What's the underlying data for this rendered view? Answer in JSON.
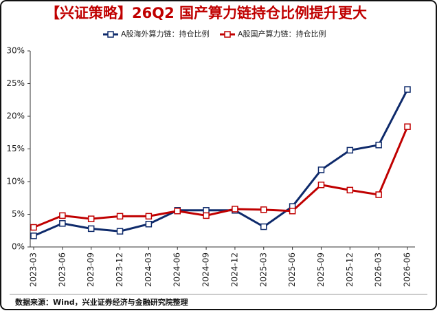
{
  "chart_data": {
    "type": "line",
    "title": "【兴证策略】26Q2 国产算力链持仓比例提升更大",
    "source": "数据来源：Wind，兴业证券经济与金融研究院整理",
    "categories": [
      "2023-03",
      "2023-06",
      "2023-09",
      "2023-12",
      "2024-03",
      "2024-06",
      "2024-09",
      "2024-12",
      "2025-03",
      "2025-06",
      "2025-09",
      "2025-12",
      "2026-03",
      "2026-06"
    ],
    "series": [
      {
        "name": "A股海外算力链：持仓比例",
        "color": "#0e2a6b",
        "values": [
          1.7,
          3.6,
          2.8,
          2.4,
          3.5,
          5.6,
          5.6,
          5.6,
          3.1,
          6.2,
          11.8,
          14.8,
          15.6,
          24.1
        ]
      },
      {
        "name": "A股国产算力链：持仓比例",
        "color": "#c00000",
        "values": [
          3.0,
          4.8,
          4.3,
          4.7,
          4.7,
          5.5,
          4.8,
          5.8,
          5.7,
          5.5,
          9.5,
          8.7,
          8.0,
          18.4
        ]
      }
    ],
    "ylim": [
      0,
      30
    ],
    "yticks": [
      {
        "value": 0,
        "label": "0%"
      },
      {
        "value": 5,
        "label": "5%"
      },
      {
        "value": 10,
        "label": "10%"
      },
      {
        "value": 15,
        "label": "15%"
      },
      {
        "value": 20,
        "label": "20%"
      },
      {
        "value": 25,
        "label": "25%"
      },
      {
        "value": 30,
        "label": "30%"
      }
    ],
    "legend": "top"
  }
}
